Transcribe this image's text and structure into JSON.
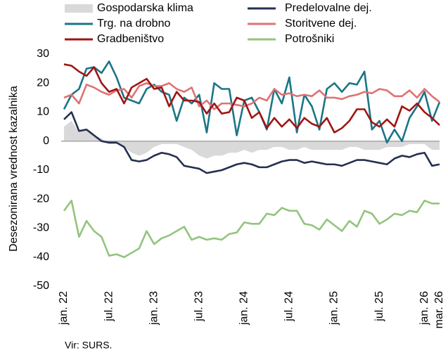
{
  "chart_data": {
    "type": "line",
    "y_label": "Desezonirana vrednost kazalnika",
    "source": "Vir: SURS.",
    "legend": "top",
    "categories": [
      "jan. 22",
      null,
      null,
      null,
      null,
      null,
      "jul. 22",
      null,
      null,
      null,
      null,
      null,
      "jan. 23",
      null,
      null,
      null,
      null,
      null,
      "jul. 23",
      null,
      null,
      null,
      null,
      null,
      "jan. 24",
      null,
      null,
      null,
      null,
      null,
      "jul. 24",
      null,
      null,
      null,
      null,
      null,
      "jan. 25",
      null,
      null,
      null,
      null,
      null,
      "jul. 25",
      null,
      null,
      null,
      null,
      null,
      "jan. 26",
      null,
      "mar. 26"
    ],
    "ylim": [
      -50,
      30
    ],
    "yticks": [
      -50,
      -40,
      -30,
      -20,
      -10,
      0,
      10,
      20,
      30
    ],
    "series": [
      {
        "name": "Gospodarska klima",
        "color": "#d9d9d9",
        "style": "area",
        "values": [
          5,
          7,
          3,
          4,
          2,
          1,
          -1,
          -1,
          -2,
          -4,
          -5,
          -4,
          -2,
          -1,
          -1,
          -1,
          -2,
          -3,
          -5,
          -6,
          -5,
          -5,
          -4,
          -4,
          -3,
          -4,
          -3,
          -3,
          -2,
          -2,
          -3,
          -3,
          -2,
          -3,
          -3,
          -3,
          -3,
          -3,
          -2,
          -2,
          -3,
          -3,
          -3,
          -2,
          -2,
          -2,
          -1,
          -1,
          -1,
          -3,
          -3
        ]
      },
      {
        "name": "Predelovalne dej.",
        "color": "#24304f",
        "style": "line",
        "values": [
          7.5,
          10,
          3.5,
          4,
          2,
          0,
          -0.5,
          -0.5,
          -2,
          -6.5,
          -7,
          -6.5,
          -5,
          -4,
          -4.5,
          -5.5,
          -8.5,
          -9,
          -9.5,
          -11,
          -10.5,
          -10,
          -9,
          -8,
          -7.5,
          -8,
          -9,
          -9,
          -8,
          -7,
          -6.5,
          -6.5,
          -7.5,
          -7,
          -7.5,
          -8,
          -8,
          -8.5,
          -7.5,
          -6.5,
          -6.5,
          -7,
          -7.5,
          -8,
          -6,
          -5,
          -5.5,
          -4.5,
          -4,
          -8.5,
          -8
        ]
      },
      {
        "name": "Trg. na drobno",
        "color": "#1b7586",
        "style": "line",
        "values": [
          11,
          16,
          18,
          25,
          25.5,
          23.5,
          27.5,
          22,
          15,
          14,
          13,
          18,
          19.5,
          17,
          16,
          7,
          15,
          13,
          16,
          3,
          20,
          18,
          18,
          2,
          14,
          15,
          10,
          4,
          18,
          13,
          22,
          3,
          16,
          12,
          4,
          18,
          20,
          17,
          20,
          19.5,
          24,
          4,
          7,
          -0.5,
          4,
          0,
          8,
          12,
          17,
          7,
          13.5
        ]
      },
      {
        "name": "Storitvene dej.",
        "color": "#e07272",
        "style": "line",
        "values": [
          15,
          16,
          13,
          19.5,
          18.5,
          17,
          16,
          17.5,
          18,
          15,
          19,
          20,
          19,
          19,
          20,
          18,
          17,
          18.5,
          12,
          14,
          11,
          13,
          13,
          12.5,
          12,
          13,
          15,
          14,
          18,
          16,
          16.5,
          15.5,
          16,
          15.5,
          17.5,
          15,
          15,
          14.5,
          15.5,
          16,
          17,
          16.5,
          18,
          17.5,
          15.5,
          15.5,
          17.5,
          15,
          18,
          15.5,
          13.5
        ]
      },
      {
        "name": "Gradbeništvo",
        "color": "#a01414",
        "style": "line",
        "values": [
          26.5,
          26,
          24,
          22.5,
          25.5,
          20,
          17,
          18,
          13,
          18.5,
          20,
          21.5,
          18,
          18.5,
          12,
          17,
          14,
          14,
          13.5,
          9.5,
          13,
          9.5,
          10,
          15,
          14,
          8,
          10,
          4.5,
          8,
          5,
          7.5,
          4.5,
          8,
          6,
          5,
          8,
          3,
          4.5,
          7,
          11,
          11,
          6.5,
          5,
          7.5,
          5,
          12,
          10.5,
          13,
          10,
          8,
          5.5
        ]
      },
      {
        "name": "Potrošniki",
        "color": "#93c47d",
        "style": "line",
        "values": [
          -24,
          -20.5,
          -33,
          -27.5,
          -31,
          -33,
          -39.5,
          -39,
          -40,
          -38.5,
          -37,
          -31,
          -35.5,
          -33.5,
          -32.5,
          -31,
          -29.5,
          -34,
          -33,
          -34,
          -33.5,
          -34,
          -32,
          -31.5,
          -28,
          -28.5,
          -28.5,
          -25,
          -25.5,
          -23,
          -24,
          -24,
          -28.5,
          -29,
          -30.5,
          -27,
          -29,
          -31,
          -27.5,
          -29.5,
          -24,
          -25,
          -28.5,
          -27,
          -25,
          -25.5,
          -24,
          -24.5,
          -20.5,
          -21.5,
          -21.5
        ]
      }
    ]
  }
}
